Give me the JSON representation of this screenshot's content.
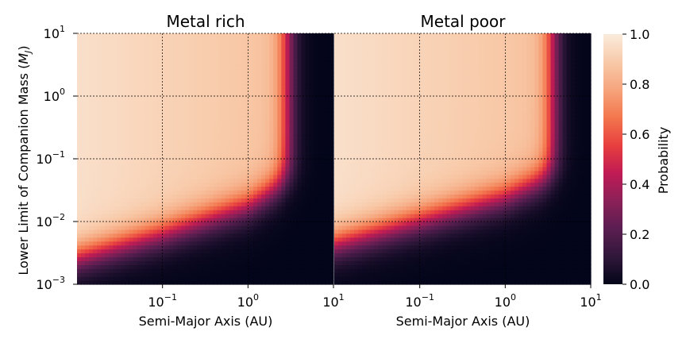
{
  "chart_data": [
    {
      "type": "heatmap",
      "title": "Metal rich",
      "xlabel": "Semi-Major Axis (AU)",
      "ylabel": "Lower Limit of Companion Mass (M_J)",
      "xscale": "log",
      "yscale": "log",
      "xlim": [
        0.01,
        10
      ],
      "ylim": [
        0.001,
        10
      ],
      "x_ticks": [
        {
          "value": 0.1,
          "base": "10",
          "exp": "−1"
        },
        {
          "value": 1,
          "base": "10",
          "exp": "0"
        },
        {
          "value": 10,
          "base": "10",
          "exp": "1"
        }
      ],
      "y_ticks": [
        {
          "value": 0.001,
          "base": "10",
          "exp": "−3"
        },
        {
          "value": 0.01,
          "base": "10",
          "exp": "−2"
        },
        {
          "value": 0.1,
          "base": "10",
          "exp": "−1"
        },
        {
          "value": 1,
          "base": "10",
          "exp": "0"
        },
        {
          "value": 10,
          "base": "10",
          "exp": "1"
        }
      ],
      "grid": true,
      "edge_sma_au": 2.9,
      "curve": {
        "sma_au": [
          0.01,
          0.1,
          1,
          2.9
        ],
        "mass_mj_50pct": [
          0.0027,
          0.0065,
          0.018,
          0.045
        ]
      }
    },
    {
      "type": "heatmap",
      "title": "Metal poor",
      "xlabel": "Semi-Major Axis (AU)",
      "xscale": "log",
      "yscale": "log",
      "xlim": [
        0.01,
        10
      ],
      "ylim": [
        0.001,
        10
      ],
      "x_ticks": [
        {
          "value": 0.1,
          "base": "10",
          "exp": "−1"
        },
        {
          "value": 1,
          "base": "10",
          "exp": "0"
        },
        {
          "value": 10,
          "base": "10",
          "exp": "1"
        }
      ],
      "grid": true,
      "edge_sma_au": 3.6,
      "curve": {
        "sma_au": [
          0.01,
          0.1,
          1,
          3.6
        ],
        "mass_mj_50pct": [
          0.0045,
          0.0105,
          0.025,
          0.055
        ]
      }
    }
  ],
  "colorbar": {
    "label": "Probability",
    "range": [
      0,
      1
    ],
    "ticks": [
      "0.0",
      "0.2",
      "0.4",
      "0.6",
      "0.8",
      "1.0"
    ],
    "colormap": "rocket",
    "colors": [
      "#03051a",
      "#30173a",
      "#5b1e51",
      "#8b2058",
      "#c01b54",
      "#e83f3f",
      "#f3774e",
      "#f6a47c",
      "#f8caa9",
      "#faebdd"
    ]
  }
}
